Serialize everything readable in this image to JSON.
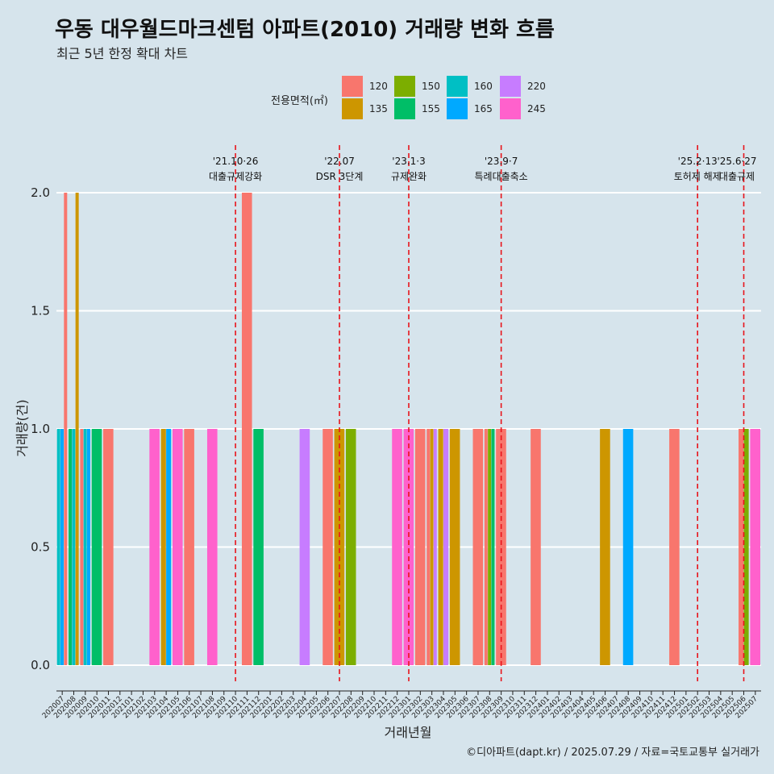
{
  "title": "우동 대우월드마크센텀 아파트(2010) 거래량 변화 흐름",
  "subtitle": "최근 5년 한정 확대 차트",
  "caption": "©디아파트(dapt.kr) / 2025.07.29 / 자료=국토교통부 실거래가",
  "legend": {
    "title": "전용면적(㎡)",
    "items": [
      {
        "label": "120",
        "color": "#F8766D"
      },
      {
        "label": "135",
        "color": "#CD9600"
      },
      {
        "label": "150",
        "color": "#7CAE00"
      },
      {
        "label": "155",
        "color": "#00BE67"
      },
      {
        "label": "160",
        "color": "#00BFC4"
      },
      {
        "label": "165",
        "color": "#00A9FF"
      },
      {
        "label": "220",
        "color": "#C77CFF"
      },
      {
        "label": "245",
        "color": "#FF61CC"
      }
    ]
  },
  "chart_data": {
    "type": "bar",
    "xlabel": "거래년월",
    "ylabel": "거래량(건)",
    "ylim": [
      0,
      2
    ],
    "yticks": [
      "0.0",
      "0.5",
      "1.0",
      "1.5",
      "2.0"
    ],
    "categories": [
      "202007",
      "202008",
      "202009",
      "202010",
      "202011",
      "202012",
      "202101",
      "202102",
      "202103",
      "202104",
      "202105",
      "202106",
      "202107",
      "202108",
      "202109",
      "202110",
      "202111",
      "202112",
      "202201",
      "202202",
      "202203",
      "202204",
      "202205",
      "202206",
      "202207",
      "202208",
      "202209",
      "202210",
      "202211",
      "202212",
      "202301",
      "202302",
      "202303",
      "202304",
      "202305",
      "202306",
      "202307",
      "202308",
      "202309",
      "202310",
      "202311",
      "202312",
      "202401",
      "202402",
      "202403",
      "202404",
      "202405",
      "202406",
      "202407",
      "202408",
      "202409",
      "202410",
      "202411",
      "202412",
      "202501",
      "202502",
      "202503",
      "202504",
      "202505",
      "202506",
      "202507"
    ],
    "bars": [
      {
        "month": "202007",
        "segments": [
          {
            "area": "160",
            "value": 1
          },
          {
            "area": "165",
            "value": 1
          },
          {
            "area": "120",
            "value": 2
          }
        ]
      },
      {
        "month": "202008",
        "segments": [
          {
            "area": "155",
            "value": 1
          },
          {
            "area": "160",
            "value": 1
          },
          {
            "area": "135",
            "value": 2
          }
        ]
      },
      {
        "month": "202009",
        "segments": [
          {
            "area": "120",
            "value": 1
          },
          {
            "area": "160",
            "value": 1
          },
          {
            "area": "165",
            "value": 1
          }
        ]
      },
      {
        "month": "202010",
        "segments": [
          {
            "area": "155",
            "value": 1
          }
        ]
      },
      {
        "month": "202011",
        "segments": [
          {
            "area": "120",
            "value": 1
          }
        ]
      },
      {
        "month": "202103",
        "segments": [
          {
            "area": "245",
            "value": 1
          }
        ]
      },
      {
        "month": "202104",
        "segments": [
          {
            "area": "135",
            "value": 1
          },
          {
            "area": "165",
            "value": 1
          }
        ]
      },
      {
        "month": "202105",
        "segments": [
          {
            "area": "245",
            "value": 1
          }
        ]
      },
      {
        "month": "202106",
        "segments": [
          {
            "area": "120",
            "value": 1
          }
        ]
      },
      {
        "month": "202108",
        "segments": [
          {
            "area": "245",
            "value": 1
          }
        ]
      },
      {
        "month": "202111",
        "segments": [
          {
            "area": "120",
            "value": 2
          }
        ]
      },
      {
        "month": "202112",
        "segments": [
          {
            "area": "155",
            "value": 1
          }
        ]
      },
      {
        "month": "202204",
        "segments": [
          {
            "area": "220",
            "value": 1
          }
        ]
      },
      {
        "month": "202206",
        "segments": [
          {
            "area": "120",
            "value": 1
          }
        ]
      },
      {
        "month": "202207",
        "segments": [
          {
            "area": "135",
            "value": 1
          }
        ]
      },
      {
        "month": "202208",
        "segments": [
          {
            "area": "150",
            "value": 1
          }
        ]
      },
      {
        "month": "202212",
        "segments": [
          {
            "area": "245",
            "value": 1
          }
        ]
      },
      {
        "month": "202301",
        "segments": [
          {
            "area": "245",
            "value": 1
          }
        ]
      },
      {
        "month": "202302",
        "segments": [
          {
            "area": "120",
            "value": 1
          }
        ]
      },
      {
        "month": "202303",
        "segments": [
          {
            "area": "120",
            "value": 1
          },
          {
            "area": "135",
            "value": 1
          },
          {
            "area": "220",
            "value": 1
          }
        ]
      },
      {
        "month": "202304",
        "segments": [
          {
            "area": "135",
            "value": 1
          },
          {
            "area": "220",
            "value": 1
          }
        ]
      },
      {
        "month": "202305",
        "segments": [
          {
            "area": "135",
            "value": 1
          }
        ]
      },
      {
        "month": "202307",
        "segments": [
          {
            "area": "120",
            "value": 1
          }
        ]
      },
      {
        "month": "202308",
        "segments": [
          {
            "area": "120",
            "value": 1
          },
          {
            "area": "150",
            "value": 1
          },
          {
            "area": "155",
            "value": 1
          }
        ]
      },
      {
        "month": "202309",
        "segments": [
          {
            "area": "120",
            "value": 1
          }
        ]
      },
      {
        "month": "202312",
        "segments": [
          {
            "area": "120",
            "value": 1
          }
        ]
      },
      {
        "month": "202406",
        "segments": [
          {
            "area": "135",
            "value": 1
          }
        ]
      },
      {
        "month": "202408",
        "segments": [
          {
            "area": "165",
            "value": 1
          }
        ]
      },
      {
        "month": "202412",
        "segments": [
          {
            "area": "120",
            "value": 1
          }
        ]
      },
      {
        "month": "202506",
        "segments": [
          {
            "area": "120",
            "value": 1
          },
          {
            "area": "150",
            "value": 1
          }
        ]
      },
      {
        "month": "202507",
        "segments": [
          {
            "area": "245",
            "value": 1
          }
        ]
      }
    ],
    "events": [
      {
        "month": "202110",
        "date": "'21.10·26",
        "label": "대출규제강화"
      },
      {
        "month": "202207",
        "date": "'22.07",
        "label": "DSR 3단계"
      },
      {
        "month": "202301",
        "date": "'23.1·3",
        "label": "규제완화"
      },
      {
        "month": "202309",
        "date": "'23.9·7",
        "label": "특례대출축소"
      },
      {
        "month": "202502",
        "date": "'25.2·13",
        "label": "토허제 해제"
      },
      {
        "month": "202506",
        "date": "'25.6·27",
        "label": "대출규제"
      }
    ]
  }
}
